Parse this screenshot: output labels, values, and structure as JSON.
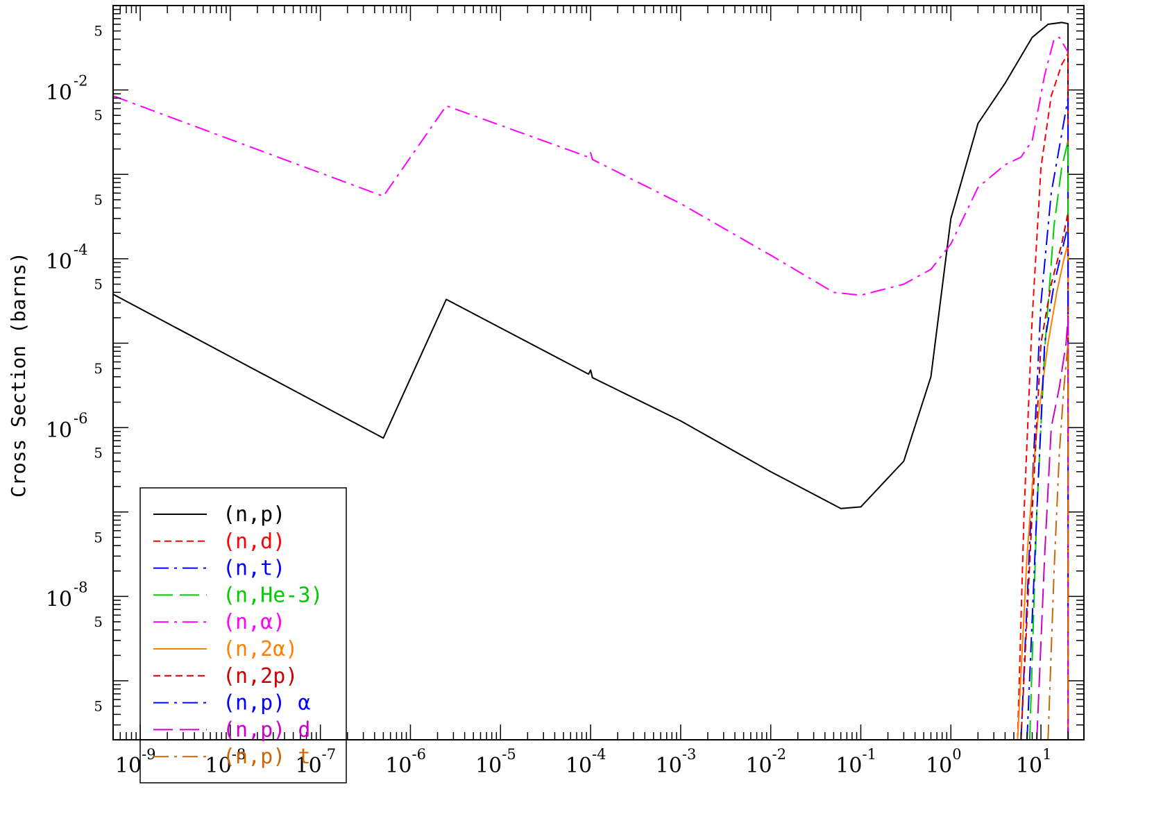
{
  "chart_data": {
    "type": "line",
    "title": "",
    "xlabel": "",
    "ylabel": "Cross Section (barns)",
    "xscale": "log",
    "yscale": "log",
    "xlim": [
      5e-10,
      30
    ],
    "ylim": [
      2e-10,
      0.1
    ],
    "grid": false,
    "legend_position": "bottom-left",
    "x_tick_labels": [
      {
        "value": 1e-09,
        "base": "10",
        "exp": "-9"
      },
      {
        "value": 1e-08,
        "base": "10",
        "exp": "-8"
      },
      {
        "value": 1e-07,
        "base": "10",
        "exp": "-7"
      },
      {
        "value": 1e-06,
        "base": "10",
        "exp": "-6"
      },
      {
        "value": 1e-05,
        "base": "10",
        "exp": "-5"
      },
      {
        "value": 0.0001,
        "base": "10",
        "exp": "-4"
      },
      {
        "value": 0.001,
        "base": "10",
        "exp": "-3"
      },
      {
        "value": 0.01,
        "base": "10",
        "exp": "-2"
      },
      {
        "value": 0.1,
        "base": "10",
        "exp": "-1"
      },
      {
        "value": 1,
        "base": "10",
        "exp": "0"
      },
      {
        "value": 10,
        "base": "10",
        "exp": "1"
      }
    ],
    "y_tick_labels": [
      {
        "value": 0.01,
        "base": "10",
        "exp": "-2"
      },
      {
        "value": 0.0001,
        "base": "10",
        "exp": "-4"
      },
      {
        "value": 1e-06,
        "base": "10",
        "exp": "-6"
      },
      {
        "value": 1e-08,
        "base": "10",
        "exp": "-8"
      }
    ],
    "y_minor_label": "5",
    "y_minor_values": [
      0.05,
      0.005,
      0.0005,
      5e-05,
      5e-06,
      5e-07,
      5e-08,
      5e-09,
      5e-10
    ],
    "series": [
      {
        "name": "(n,p)",
        "color": "#000000",
        "dash": "solid",
        "x": [
          5e-10,
          5e-07,
          2.5e-06,
          9.5e-05,
          0.0001,
          0.000105,
          0.001,
          0.01,
          0.06,
          0.1,
          0.3,
          0.6,
          1.0,
          2.0,
          4.0,
          8.0,
          12.0,
          17.0,
          20.0,
          20.0
        ],
        "y": [
          3.8e-05,
          7.5e-07,
          3.3e-05,
          4.3e-06,
          4.8e-06,
          3.9e-06,
          1.2e-06,
          3e-07,
          1.1e-07,
          1.15e-07,
          4e-07,
          4e-06,
          0.0003,
          0.004,
          0.012,
          0.042,
          0.06,
          0.063,
          0.061,
          2e-10
        ]
      },
      {
        "name": "(n,d)",
        "color": "#ff0000",
        "dash": "short",
        "x": [
          5.5,
          6.5,
          8.0,
          10.0,
          13.0,
          17.0,
          20.0,
          20.0
        ],
        "y": [
          2e-10,
          1e-07,
          2e-05,
          0.0012,
          0.0085,
          0.02,
          0.027,
          2e-10
        ]
      },
      {
        "name": "(n,t)",
        "color": "#0000ff",
        "dash": "dashdot",
        "x": [
          6.0,
          8.0,
          10.0,
          13.0,
          17.0,
          20.0,
          20.0
        ],
        "y": [
          2e-10,
          2e-07,
          3e-05,
          0.0006,
          0.003,
          0.008,
          2e-10
        ]
      },
      {
        "name": "(n,He-3)",
        "color": "#00cc00",
        "dash": "long",
        "x": [
          7.5,
          9.0,
          11.0,
          14.0,
          17.0,
          20.0,
          20.0
        ],
        "y": [
          2e-10,
          1e-07,
          8e-06,
          0.00025,
          0.0012,
          0.0025,
          2e-10
        ]
      },
      {
        "name": "(n,α)",
        "color": "#ff00ff",
        "dash": "dashdot",
        "x": [
          5e-10,
          5e-07,
          2.5e-06,
          9.5e-05,
          0.0001,
          0.000105,
          0.001,
          0.01,
          0.05,
          0.1,
          0.3,
          0.6,
          1.0,
          2.0,
          4.0,
          6.0,
          8.0,
          11.0,
          14.0,
          16.0,
          20.0
        ],
        "y": [
          0.0085,
          0.00055,
          0.0065,
          0.0016,
          0.0018,
          0.0015,
          0.00045,
          0.00011,
          4e-05,
          3.7e-05,
          5e-05,
          7.5e-05,
          0.00015,
          0.0007,
          0.0013,
          0.0016,
          0.0025,
          0.015,
          0.04,
          0.042,
          0.028
        ]
      },
      {
        "name": "(n,2α)",
        "color": "#ff8000",
        "dash": "solid",
        "x": [
          5.5,
          7.0,
          9.0,
          12.0,
          15.0,
          18.0,
          20.0,
          20.0
        ],
        "y": [
          2e-10,
          3e-08,
          1e-06,
          1e-05,
          4e-05,
          0.0001,
          0.00015,
          2e-10
        ]
      },
      {
        "name": "(n,2p)",
        "color": "#cc0000",
        "dash": "short",
        "x": [
          6.0,
          8.0,
          10.0,
          13.0,
          17.0,
          20.0,
          20.0
        ],
        "y": [
          2e-10,
          1e-07,
          1e-05,
          5e-05,
          0.00015,
          0.00035,
          2e-10
        ]
      },
      {
        "name": "(n,p) α",
        "color": "#0000ff",
        "dash": "dashdot",
        "x": [
          7.0,
          9.0,
          11.0,
          14.0,
          17.0,
          20.0,
          20.0
        ],
        "y": [
          2e-10,
          1e-07,
          1e-05,
          5e-05,
          0.00012,
          0.00025,
          2e-10
        ]
      },
      {
        "name": "(n,p) d",
        "color": "#cc00cc",
        "dash": "long",
        "x": [
          9.0,
          11.0,
          13.0,
          16.0,
          19.0,
          20.0,
          20.0
        ],
        "y": [
          2e-10,
          3e-08,
          1e-06,
          3e-06,
          1e-05,
          2e-05,
          2e-10
        ]
      },
      {
        "name": "(n,p) t",
        "color": "#cc6600",
        "dash": "dashdot",
        "x": [
          12.0,
          14.0,
          16.0,
          18.0,
          20.0,
          20.0
        ],
        "y": [
          2e-10,
          2e-08,
          5e-07,
          3e-06,
          1e-05,
          2e-10
        ]
      }
    ]
  }
}
